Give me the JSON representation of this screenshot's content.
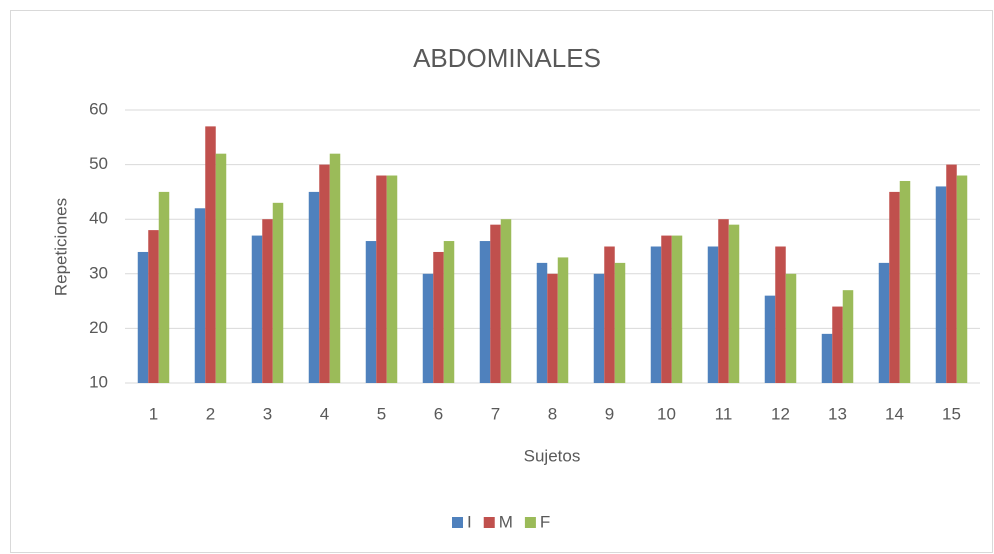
{
  "chart_data": {
    "type": "bar",
    "title": "ABDOMINALES",
    "x_label": "Sujetos",
    "y_label": "Repeticiones",
    "categories": [
      "1",
      "2",
      "3",
      "4",
      "5",
      "6",
      "7",
      "8",
      "9",
      "10",
      "11",
      "12",
      "13",
      "14",
      "15"
    ],
    "series": [
      {
        "name": "I",
        "color": "#4f81bd",
        "values": [
          34,
          42,
          37,
          45,
          36,
          30,
          36,
          32,
          30,
          35,
          35,
          26,
          19,
          32,
          46
        ]
      },
      {
        "name": "M",
        "color": "#c0504d",
        "values": [
          38,
          57,
          40,
          50,
          48,
          34,
          39,
          30,
          35,
          37,
          40,
          35,
          24,
          45,
          50
        ]
      },
      {
        "name": "F",
        "color": "#9bbb59",
        "values": [
          45,
          52,
          43,
          52,
          48,
          36,
          40,
          33,
          32,
          37,
          39,
          30,
          27,
          47,
          48
        ]
      }
    ],
    "ylim": [
      10,
      60
    ],
    "yticks": [
      10,
      20,
      30,
      40,
      50,
      60
    ],
    "grid": true,
    "legend": "bottom"
  }
}
